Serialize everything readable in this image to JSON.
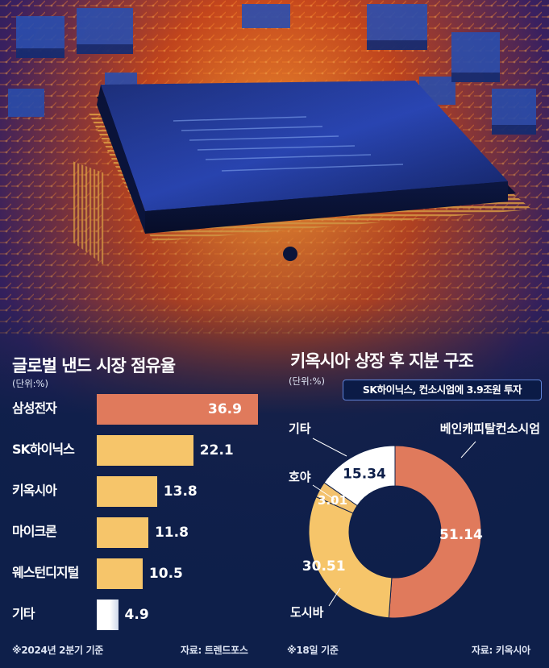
{
  "colors": {
    "background": "#0e1f4a",
    "highlight": "#e07a5c",
    "bar": "#f6c56a",
    "other": "#ffffff",
    "donut_samsung": "#e07a5c",
    "donut_toshiba": "#f6c56a",
    "donut_hoya": "#f3c26e",
    "donut_other": "#ffffff"
  },
  "hero": {
    "image": "semiconductor-chip-illustration"
  },
  "left_panel": {
    "title": "글로벌 낸드 시장 점유율",
    "unit": "(단위:%)",
    "footnote": "※2024년 2분기 기준",
    "source": "자료: 트렌드포스"
  },
  "right_panel": {
    "title": "키옥시아 상장 후 지분 구조",
    "unit": "(단위:%)",
    "callout": "SK하이닉스, 컨소시엄에 3.9조원 투자",
    "footnote": "※18일 기준",
    "source": "자료: 키옥시아"
  },
  "chart_data": [
    {
      "type": "bar",
      "orientation": "horizontal",
      "title": "글로벌 낸드 시장 점유율",
      "unit": "%",
      "categories": [
        "삼성전자",
        "SK하이닉스",
        "키옥시아",
        "마이크론",
        "웨스턴디지털",
        "기타"
      ],
      "values": [
        36.9,
        22.1,
        13.8,
        11.8,
        10.5,
        4.9
      ],
      "value_labels": [
        "36.9",
        "22.1",
        "13.8",
        "11.8",
        "10.5",
        "4.9"
      ],
      "xlim": [
        0,
        36.9
      ]
    },
    {
      "type": "pie",
      "style": "donut",
      "title": "키옥시아 상장 후 지분 구조",
      "unit": "%",
      "categories": [
        "베인캐피탈컨소시엄",
        "도시바",
        "호야",
        "기타"
      ],
      "values": [
        51.14,
        30.51,
        3.01,
        15.34
      ],
      "value_labels": [
        "51.14",
        "30.51",
        "3.01",
        "15.34"
      ]
    }
  ]
}
